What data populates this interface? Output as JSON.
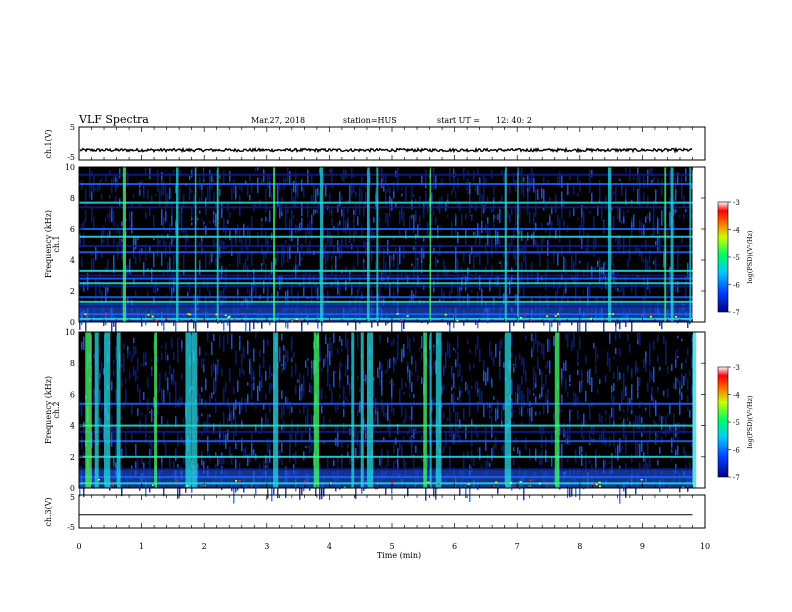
{
  "header": {
    "title": "VLF Spectra",
    "date": "Mar.27, 2018",
    "station": "station=HUS",
    "start_label": "start  UT  =",
    "start_time": "12: 40: 2"
  },
  "colors": {
    "background_black": "#000000",
    "dark_blue": "#0a1e8c",
    "mid_blue": "#1f5fff",
    "cyan": "#25d8e0",
    "green": "#46ff6e",
    "yellow": "#ffff32",
    "red": "#ff1e1e",
    "trace": "#000000"
  },
  "chart_data": [
    {
      "type": "line",
      "panel": "ch1-waveform",
      "ylabel": "ch.1(V)",
      "ylim": [
        -5,
        5
      ],
      "yticks": [
        "5",
        "-5"
      ],
      "xlim": [
        0,
        10
      ],
      "series": [
        {
          "values_approx": "near-constant trace at about -2 V with small noise from 0 to 9.8 min"
        }
      ]
    },
    {
      "type": "heatmap",
      "panel": "ch1-spectrogram",
      "side_label": "ch.1",
      "ylabel": "Frequency (kHz)",
      "ylim": [
        0,
        10
      ],
      "yticks": [
        "0",
        "2",
        "4",
        "6",
        "8",
        "10"
      ],
      "xlim": [
        0,
        10
      ],
      "data_end_min": 9.8,
      "colorbar": {
        "label": "log(PSD)(V²/Hz)",
        "range": [
          -7,
          -3
        ],
        "ticks": [
          "-3",
          "-4",
          "-5",
          "-6",
          "-7"
        ]
      },
      "horizontal_lines_khz": [
        0.2,
        0.5,
        1.0,
        1.3,
        1.6,
        2.3,
        2.5,
        2.8,
        3.0,
        3.3,
        4.5,
        4.9,
        5.5,
        6.0,
        7.4,
        7.7,
        8.9,
        9.5
      ],
      "vertical_bursts_min": [
        0.7,
        1.55,
        1.85,
        2.2,
        3.1,
        3.85,
        4.6,
        4.75,
        5.6,
        6.8,
        7.0,
        8.45,
        9.35,
        9.45,
        9.75
      ]
    },
    {
      "type": "heatmap",
      "panel": "ch2-spectrogram",
      "side_label": "ch.2",
      "ylabel": "Frequency (kHz)",
      "ylim": [
        0,
        10
      ],
      "yticks": [
        "0",
        "2",
        "4",
        "6",
        "8",
        "10"
      ],
      "xlim": [
        0,
        10
      ],
      "data_end_min": 9.8,
      "colorbar": {
        "label": "log(PSD)(V²/Hz)",
        "range": [
          -7,
          -3
        ],
        "ticks": [
          "-3",
          "-4",
          "-5",
          "-6",
          "-7"
        ]
      },
      "horizontal_lines_khz": [
        0.3,
        0.7,
        1.2,
        2.0,
        3.0,
        3.6,
        4.0,
        5.4
      ],
      "vertical_bursts_min": [
        0.1,
        0.25,
        0.4,
        0.6,
        1.2,
        1.7,
        1.8,
        3.1,
        3.75,
        4.35,
        4.5,
        4.6,
        5.5,
        5.6,
        5.7,
        6.8,
        7.6,
        9.8
      ]
    },
    {
      "type": "line",
      "panel": "ch3-waveform",
      "ylabel": "ch.3(V)",
      "ylim": [
        -5,
        5
      ],
      "yticks": [
        "5",
        "-5"
      ],
      "xlim": [
        0,
        10
      ],
      "series": [
        {
          "values_approx": "flat trace at about -1 V"
        }
      ]
    }
  ],
  "xaxis": {
    "label": "Time  (min)",
    "ticks": [
      "0",
      "1",
      "2",
      "3",
      "4",
      "5",
      "6",
      "7",
      "8",
      "9",
      "10"
    ]
  }
}
